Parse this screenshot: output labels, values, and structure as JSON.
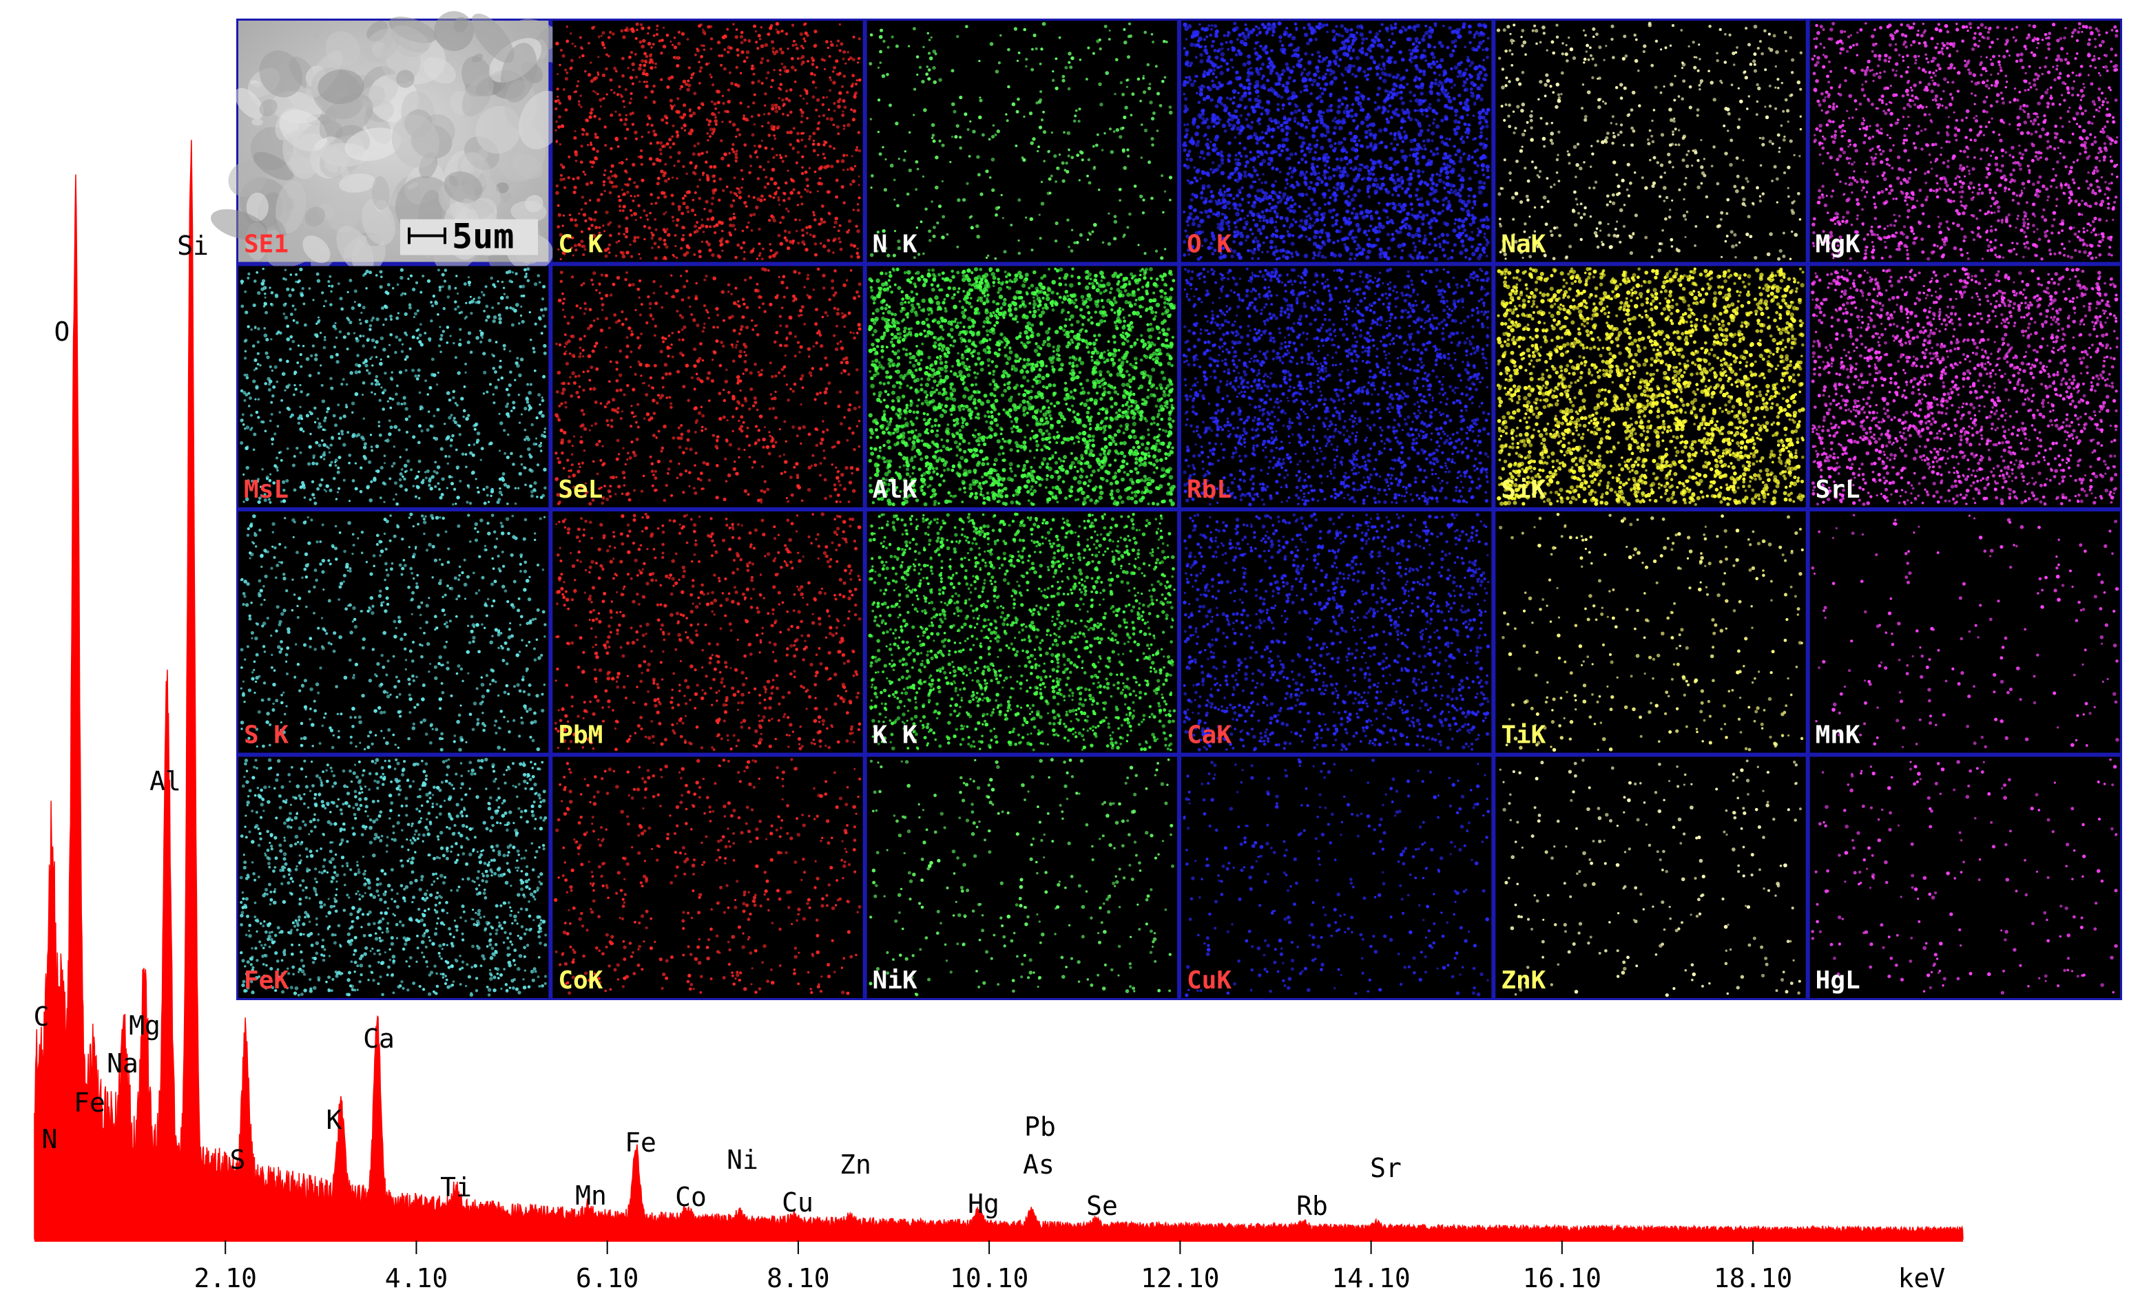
{
  "chart_data": {
    "type": "line",
    "spectrum": {
      "xlabel": "keV",
      "color": "#ff0000",
      "xlim": [
        0.1,
        20.3
      ],
      "ylim": [
        0,
        100
      ],
      "tick_labels": [
        "2.10",
        "4.10",
        "6.10",
        "8.10",
        "10.10",
        "12.10",
        "14.10",
        "16.10",
        "18.10"
      ],
      "tick_values": [
        2.1,
        4.1,
        6.1,
        8.1,
        10.1,
        12.1,
        14.1,
        16.1,
        18.1
      ],
      "peaks": [
        {
          "label": "C",
          "energy": 0.28,
          "height": 25
        },
        {
          "label": "N",
          "energy": 0.39,
          "height": 10
        },
        {
          "label": "O",
          "energy": 0.53,
          "height": 89
        },
        {
          "label": "Fe",
          "energy": 0.71,
          "height": 6
        },
        {
          "label": "Na",
          "energy": 1.04,
          "height": 11
        },
        {
          "label": "Mg",
          "energy": 1.25,
          "height": 17
        },
        {
          "label": "Al",
          "energy": 1.49,
          "height": 46
        },
        {
          "label": "Si",
          "energy": 1.74,
          "height": 100
        },
        {
          "label": "S",
          "energy": 2.31,
          "height": 14
        },
        {
          "label": "K",
          "energy": 3.31,
          "height": 9
        },
        {
          "label": "Ca",
          "energy": 3.69,
          "height": 18
        },
        {
          "label": "Ti",
          "energy": 4.51,
          "height": 2
        },
        {
          "label": "Mn",
          "energy": 5.9,
          "height": 1
        },
        {
          "label": "Fe",
          "energy": 6.4,
          "height": 7
        },
        {
          "label": "Co",
          "energy": 6.93,
          "height": 1
        },
        {
          "label": "Ni",
          "energy": 7.48,
          "height": 0.8
        },
        {
          "label": "Cu",
          "energy": 8.05,
          "height": 0.8
        },
        {
          "label": "Zn",
          "energy": 8.64,
          "height": 0.6
        },
        {
          "label": "Hg",
          "energy": 9.99,
          "height": 1.5
        },
        {
          "label": "Pb",
          "energy": 10.55,
          "height": 0.8
        },
        {
          "label": "As",
          "energy": 10.54,
          "height": 0.8
        },
        {
          "label": "Se",
          "energy": 11.22,
          "height": 0.6
        },
        {
          "label": "Rb",
          "energy": 13.39,
          "height": 0.5
        },
        {
          "label": "Sr",
          "energy": 14.16,
          "height": 0.5
        }
      ]
    },
    "maps": {
      "rows": 4,
      "cols": 6,
      "scale_bar": "5um",
      "panels": [
        {
          "label": "SE1",
          "color": "#ff3030",
          "label_color": "#ff3030",
          "density": 0
        },
        {
          "label": "C K",
          "color": "#ff2828",
          "label_color": "#ffff66",
          "density": 0.45
        },
        {
          "label": "N K",
          "color": "#66ff66",
          "label_color": "#ffffff",
          "density": 0.12
        },
        {
          "label": "O K",
          "color": "#2a2aff",
          "label_color": "#ff4040",
          "density": 0.9
        },
        {
          "label": "NaK",
          "color": "#ffffbb",
          "label_color": "#ffff66",
          "density": 0.2
        },
        {
          "label": "MgK",
          "color": "#ff44ff",
          "label_color": "#ffffff",
          "density": 0.55
        },
        {
          "label": "MsL",
          "color": "#66e6e6",
          "label_color": "#ff4040",
          "density": 0.35
        },
        {
          "label": "SeL",
          "color": "#ff2828",
          "label_color": "#ffff66",
          "density": 0.3
        },
        {
          "label": "AlK",
          "color": "#44ff44",
          "label_color": "#ffffff",
          "density": 1
        },
        {
          "label": "RbL",
          "color": "#2a2aff",
          "label_color": "#ff4040",
          "density": 0.8
        },
        {
          "label": "SiK",
          "color": "#ffff33",
          "label_color": "#ffff66",
          "density": 1
        },
        {
          "label": "SrL",
          "color": "#ff44ff",
          "label_color": "#ffffff",
          "density": 0.75
        },
        {
          "label": "S K",
          "color": "#66e6e6",
          "label_color": "#ff4040",
          "density": 0.25
        },
        {
          "label": "PbM",
          "color": "#ff2828",
          "label_color": "#ffff66",
          "density": 0.3
        },
        {
          "label": "K K",
          "color": "#44ff44",
          "label_color": "#ffffff",
          "density": 0.7
        },
        {
          "label": "CaK",
          "color": "#2a2aff",
          "label_color": "#ff4040",
          "density": 0.55
        },
        {
          "label": "TiK",
          "color": "#ffff88",
          "label_color": "#ffff66",
          "density": 0.1
        },
        {
          "label": "MnK",
          "color": "#ff44ff",
          "label_color": "#ffffff",
          "density": 0.05
        },
        {
          "label": "FeK",
          "color": "#66e6e6",
          "label_color": "#ff4040",
          "density": 0.5
        },
        {
          "label": "CoK",
          "color": "#ff2828",
          "label_color": "#ffff66",
          "density": 0.18
        },
        {
          "label": "NiK",
          "color": "#66ff66",
          "label_color": "#ffffff",
          "density": 0.1
        },
        {
          "label": "CuK",
          "color": "#2a2aff",
          "label_color": "#ff4040",
          "density": 0.12
        },
        {
          "label": "ZnK",
          "color": "#ffffbb",
          "label_color": "#ffff66",
          "density": 0.07
        },
        {
          "label": "HgL",
          "color": "#ff44ff",
          "label_color": "#ffffff",
          "density": 0.06
        }
      ]
    }
  }
}
